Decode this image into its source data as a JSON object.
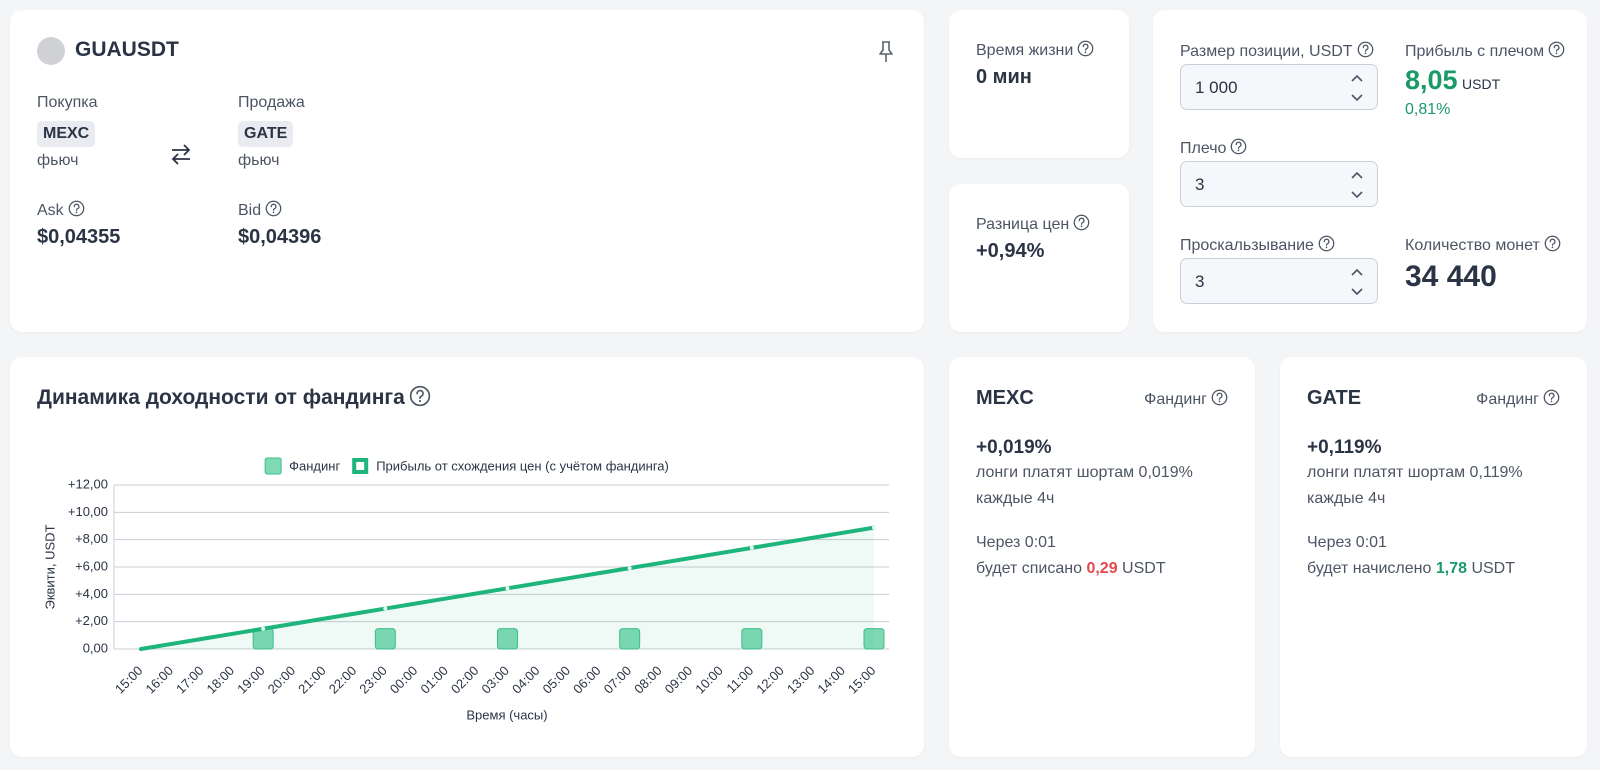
{
  "pair": {
    "symbol": "GUAUSDT"
  },
  "buy": {
    "label": "Покупка",
    "exchange": "MEXC",
    "kind": "фьюч",
    "price_label": "Ask",
    "price": "$0,04355"
  },
  "sell": {
    "label": "Продажа",
    "exchange": "GATE",
    "kind": "фьюч",
    "price_label": "Bid",
    "price": "$0,04396"
  },
  "lifetime": {
    "label": "Время жизни",
    "value": "0 мин"
  },
  "spread": {
    "label": "Разница цен",
    "value": "+0,94%"
  },
  "calculator": {
    "position": {
      "label": "Размер позиции, USDT",
      "value": "1 000"
    },
    "leverage": {
      "label": "Плечо",
      "value": "3"
    },
    "slippage": {
      "label": "Проскальзывание",
      "value": "3"
    },
    "profit": {
      "label": "Прибыль с плечом",
      "value": "8,05",
      "unit": "USDT",
      "percent": "0,81%"
    },
    "coins": {
      "label": "Количество монет",
      "value": "34 440"
    }
  },
  "funding_cards": [
    {
      "exchange": "MEXC",
      "label": "Фандинг",
      "rate": "+0,019%",
      "description": "лонги платят шортам 0,019%",
      "period": "каждые 4ч",
      "when": "Через 0:01",
      "action": "будет списано",
      "amount": "0,29",
      "unit": "USDT"
    },
    {
      "exchange": "GATE",
      "label": "Фандинг",
      "rate": "+0,119%",
      "description": "лонги платят шортам 0,119%",
      "period": "каждые 4ч",
      "when": "Через 0:01",
      "action": "будет начислено",
      "amount": "1,78",
      "unit": "USDT"
    }
  ],
  "chart_data": {
    "type": "combo",
    "title": "Динамика доходности от фандинга",
    "x_label": "Время (часы)",
    "y_label": "Эквити, USDT",
    "categories": [
      "15:00",
      "16:00",
      "17:00",
      "18:00",
      "19:00",
      "20:00",
      "21:00",
      "22:00",
      "23:00",
      "00:00",
      "01:00",
      "02:00",
      "03:00",
      "04:00",
      "05:00",
      "06:00",
      "07:00",
      "08:00",
      "09:00",
      "10:00",
      "11:00",
      "12:00",
      "13:00",
      "14:00",
      "15:00"
    ],
    "series": [
      {
        "name": "Фандинг",
        "type": "bar",
        "color": "#7fd9b4",
        "values": [
          null,
          null,
          null,
          null,
          1.49,
          null,
          null,
          null,
          1.49,
          null,
          null,
          null,
          1.49,
          null,
          null,
          null,
          1.49,
          null,
          null,
          null,
          1.49,
          null,
          null,
          null,
          1.49
        ]
      },
      {
        "name": "Прибыль от схождения цен (с учётом фандинга)",
        "type": "line",
        "color": "#1db57c",
        "values": [
          0,
          0.37,
          0.74,
          1.11,
          1.48,
          1.85,
          2.22,
          2.59,
          2.96,
          3.33,
          3.7,
          4.07,
          4.44,
          4.81,
          5.18,
          5.55,
          5.92,
          6.29,
          6.66,
          7.03,
          7.4,
          7.77,
          8.14,
          8.51,
          8.88
        ]
      }
    ],
    "ylim": [
      0,
      12
    ],
    "yticks": [
      {
        "value": 0,
        "label": "0,00"
      },
      {
        "value": 2,
        "label": "+2,00"
      },
      {
        "value": 4,
        "label": "+4,00"
      },
      {
        "value": 6,
        "label": "+6,00"
      },
      {
        "value": 8,
        "label": "+8,00"
      },
      {
        "value": 10,
        "label": "+10,00"
      },
      {
        "value": 12,
        "label": "+12,00"
      }
    ],
    "grid": true,
    "legend": "top"
  }
}
